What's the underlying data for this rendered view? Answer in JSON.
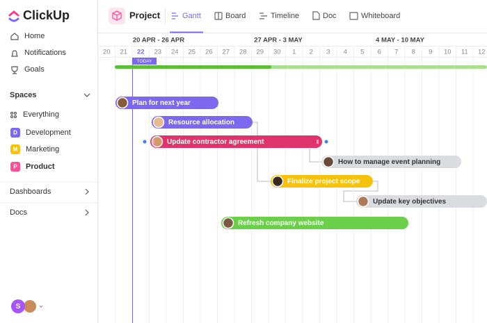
{
  "sidebar": {
    "logo": "ClickUp",
    "nav": [
      "Home",
      "Notifications",
      "Goals"
    ],
    "spaces_title": "Spaces",
    "spaces": [
      {
        "label": "Everything"
      },
      {
        "badge": "D",
        "label": "Development"
      },
      {
        "badge": "M",
        "label": "Marketing"
      },
      {
        "badge": "P",
        "label": "Product"
      }
    ],
    "sections": [
      "Dashboards",
      "Docs"
    ],
    "user_initial": "S"
  },
  "topbar": {
    "project": "Project",
    "tabs": [
      "Gantt",
      "Board",
      "Timeline",
      "Doc",
      "Whiteboard"
    ]
  },
  "gantt": {
    "weeks": [
      "20 APR - 26 APR",
      "27 APR - 3 MAY",
      "4 MAY - 10 MAY"
    ],
    "days": [
      "20",
      "21",
      "22",
      "23",
      "24",
      "25",
      "26",
      "27",
      "28",
      "29",
      "30",
      "1",
      "2",
      "3",
      "4",
      "5",
      "6",
      "7",
      "8",
      "9",
      "10",
      "11",
      "12"
    ],
    "today": "TODAY",
    "tasks": [
      "Plan for next year",
      "Resource allocation",
      "Update contractor agreement",
      "How to manage event planning",
      "Finalize project scope",
      "Update key objectives",
      "Refresh company website"
    ]
  }
}
